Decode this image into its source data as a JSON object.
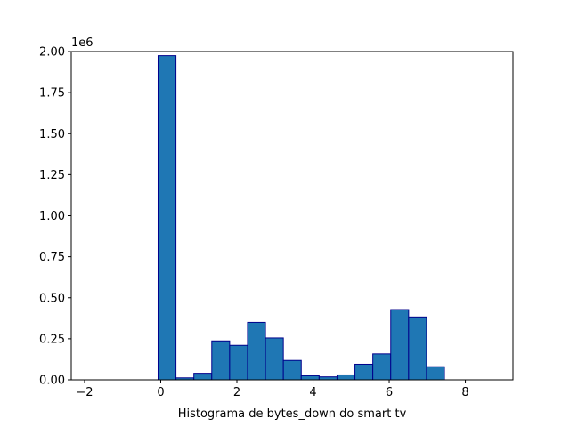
{
  "chart_data": {
    "type": "bar",
    "title": "",
    "xlabel": "Histograma de bytes_down do smart tv",
    "ylabel": "",
    "y_offset_label": "1e6",
    "xlim": [
      -2.35,
      9.25
    ],
    "ylim": [
      0,
      2.0
    ],
    "x_ticks": [
      -2,
      0,
      2,
      4,
      6,
      8
    ],
    "y_ticks": [
      0.0,
      0.25,
      0.5,
      0.75,
      1.0,
      1.25,
      1.5,
      1.75,
      2.0
    ],
    "x_tick_labels": [
      "−2",
      "0",
      "2",
      "4",
      "6",
      "8"
    ],
    "y_tick_labels": [
      "0.00",
      "0.25",
      "0.50",
      "0.75",
      "1.00",
      "1.25",
      "1.50",
      "1.75",
      "2.00"
    ],
    "grid": false,
    "legend": "none",
    "colors": {
      "fill": "#1f77b4",
      "edge": "#00008b"
    },
    "bins": [
      {
        "x0": -1.95,
        "x1": -1.48,
        "value": 0.0
      },
      {
        "x0": -1.48,
        "x1": -1.0,
        "value": 0.0
      },
      {
        "x0": -1.0,
        "x1": -0.54,
        "value": 0.0
      },
      {
        "x0": -0.54,
        "x1": -0.07,
        "value": 0.0
      },
      {
        "x0": -0.07,
        "x1": 0.4,
        "value": 1.975
      },
      {
        "x0": 0.4,
        "x1": 0.87,
        "value": 0.012
      },
      {
        "x0": 0.87,
        "x1": 1.34,
        "value": 0.04
      },
      {
        "x0": 1.34,
        "x1": 1.81,
        "value": 0.237
      },
      {
        "x0": 1.81,
        "x1": 2.28,
        "value": 0.21
      },
      {
        "x0": 2.28,
        "x1": 2.75,
        "value": 0.35
      },
      {
        "x0": 2.75,
        "x1": 3.22,
        "value": 0.255
      },
      {
        "x0": 3.22,
        "x1": 3.69,
        "value": 0.118
      },
      {
        "x0": 3.69,
        "x1": 4.16,
        "value": 0.025
      },
      {
        "x0": 4.16,
        "x1": 4.63,
        "value": 0.018
      },
      {
        "x0": 4.63,
        "x1": 5.1,
        "value": 0.03
      },
      {
        "x0": 5.1,
        "x1": 5.57,
        "value": 0.095
      },
      {
        "x0": 5.57,
        "x1": 6.04,
        "value": 0.158
      },
      {
        "x0": 6.04,
        "x1": 6.51,
        "value": 0.428
      },
      {
        "x0": 6.51,
        "x1": 6.98,
        "value": 0.383
      },
      {
        "x0": 6.98,
        "x1": 7.45,
        "value": 0.08
      },
      {
        "x0": 7.45,
        "x1": 7.92,
        "value": 0.0
      },
      {
        "x0": 7.92,
        "x1": 8.39,
        "value": 0.0
      },
      {
        "x0": 8.39,
        "x1": 8.86,
        "value": 0.0
      }
    ]
  }
}
